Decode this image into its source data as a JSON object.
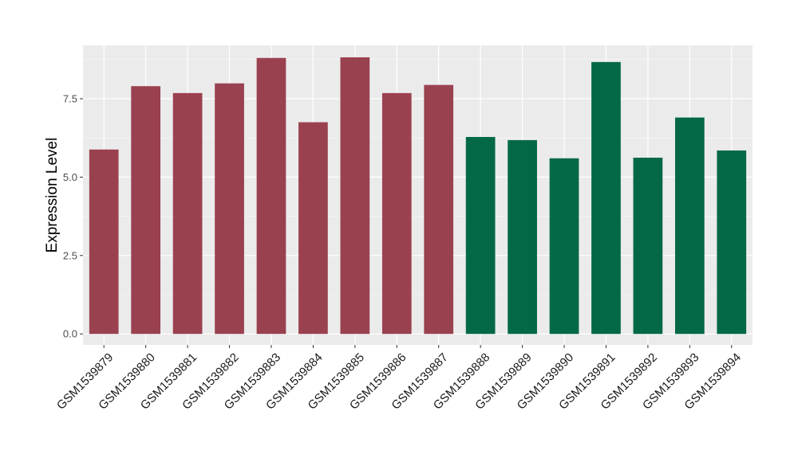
{
  "chart_data": {
    "type": "bar",
    "title": "",
    "xlabel": "",
    "ylabel": "Expression Level",
    "ylim": [
      -0.35,
      9.2
    ],
    "yticks": [
      0.0,
      2.5,
      5.0,
      7.5
    ],
    "ytick_labels": [
      "0.0",
      "2.5",
      "5.0",
      "7.5"
    ],
    "grid": true,
    "legend": "none",
    "categories": [
      "GSM1539879",
      "GSM1539880",
      "GSM1539881",
      "GSM1539882",
      "GSM1539883",
      "GSM1539884",
      "GSM1539885",
      "GSM1539886",
      "GSM1539887",
      "GSM1539888",
      "GSM1539889",
      "GSM1539890",
      "GSM1539891",
      "GSM1539892",
      "GSM1539893",
      "GSM1539894"
    ],
    "values": [
      5.88,
      7.9,
      7.68,
      7.99,
      8.8,
      6.75,
      8.82,
      7.68,
      7.94,
      6.28,
      6.18,
      5.6,
      8.67,
      5.62,
      6.9,
      5.85
    ],
    "groups": [
      "a",
      "a",
      "a",
      "a",
      "a",
      "a",
      "a",
      "a",
      "a",
      "b",
      "b",
      "b",
      "b",
      "b",
      "b",
      "b"
    ],
    "colors": {
      "a": "#9a4150",
      "b": "#026846"
    },
    "panel_background": "#ebebeb",
    "grid_major_color": "#ffffff",
    "grid_minor_color": "#f5f5f5"
  }
}
